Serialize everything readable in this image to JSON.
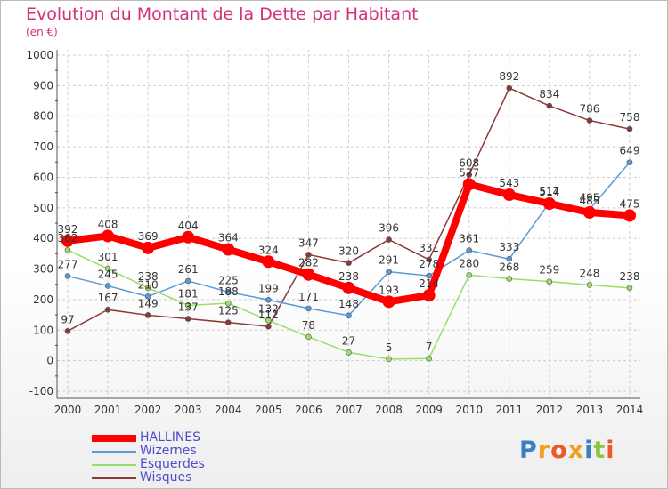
{
  "title": "Evolution du Montant de la Dette par Habitant",
  "unit": "(en €)",
  "logo": "Proxiti",
  "colors": {
    "title": "#d2317a",
    "legend_text": "#4d4dcc",
    "axis": "#555555",
    "grid": "#cccccc",
    "minor_tick": "#e0004d"
  },
  "chart_data": {
    "type": "line",
    "title": "Evolution du Montant de la Dette par Habitant",
    "ylabel": "(en €)",
    "xlabel": "",
    "ylim": [
      -100,
      1000
    ],
    "yticks": [
      -100,
      0,
      100,
      200,
      300,
      400,
      500,
      600,
      700,
      800,
      900,
      1000
    ],
    "grid": true,
    "legend_position": "bottom-left",
    "categories": [
      "2000",
      "2001",
      "2002",
      "2003",
      "2004",
      "2005",
      "2006",
      "2007",
      "2008",
      "2009",
      "2010",
      "2011",
      "2012",
      "2013",
      "2014"
    ],
    "series": [
      {
        "name": "HALLINES",
        "color": "#ff0000",
        "width": 8,
        "marker": 7,
        "values": [
          392,
          408,
          369,
          404,
          364,
          324,
          282,
          238,
          193,
          214,
          577,
          543,
          514,
          485,
          475
        ],
        "labels": [
          "392",
          "408",
          "369",
          "404",
          "364",
          "324",
          "282",
          "238",
          "193",
          "214",
          "577",
          "543",
          "514",
          "485",
          "475"
        ]
      },
      {
        "name": "Wizernes",
        "color": "#5b9bd5",
        "width": 1.5,
        "marker": 3,
        "values": [
          277,
          245,
          210,
          261,
          225,
          199,
          171,
          148,
          291,
          278,
          361,
          333,
          517,
          495,
          649
        ],
        "labels": [
          "277",
          "245",
          "210",
          "261",
          "225",
          "199",
          "171",
          "148",
          "291",
          "278",
          "361",
          "333",
          "517",
          "495",
          "649"
        ]
      },
      {
        "name": "Esquerdes",
        "color": "#98de68",
        "width": 1.5,
        "marker": 3,
        "values": [
          362,
          301,
          238,
          181,
          188,
          132,
          78,
          27,
          5,
          7,
          280,
          268,
          259,
          248,
          238
        ],
        "labels": [
          "362",
          "301",
          "238",
          "181",
          "188",
          "132",
          "78",
          "27",
          "5",
          "7",
          "280",
          "268",
          "259",
          "248",
          "238"
        ]
      },
      {
        "name": "Wisques",
        "color": "#8b3a3a",
        "width": 1.5,
        "marker": 3,
        "values": [
          97,
          167,
          149,
          137,
          125,
          112,
          347,
          320,
          396,
          331,
          608,
          892,
          834,
          786,
          758
        ],
        "labels": [
          "97",
          "167",
          "149",
          "137",
          "125",
          "112",
          "347",
          "320",
          "396",
          "331",
          "608",
          "892",
          "834",
          "786",
          "758"
        ]
      }
    ]
  }
}
